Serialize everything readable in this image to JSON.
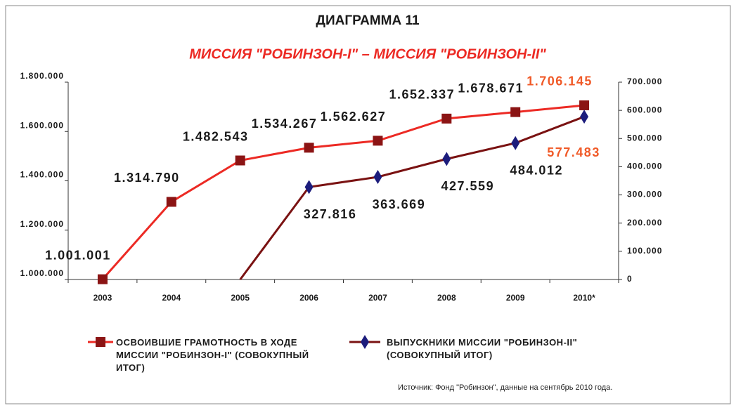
{
  "chart_data": {
    "type": "line",
    "title": "ДИАГРАММА 11",
    "subtitle": "МИССИЯ \"РОБИНЗОН-I\" – МИССИЯ \"РОБИНЗОН-II\"",
    "categories": [
      "2003",
      "2004",
      "2005",
      "2006",
      "2007",
      "2008",
      "2009",
      "2010*"
    ],
    "series": [
      {
        "name": "ОСВОИВШИЕ ГРАМОТНОСТЬ В ХОДЕ МИССИИ \"РОБИНЗОН-I\" (СОВОКУПНЫЙ ИТОГ)",
        "color": "#ec2a24",
        "marker_color": "#8b1414",
        "marker": "square",
        "values": [
          1001001,
          1314790,
          1482543,
          1534267,
          1562627,
          1652337,
          1678671,
          1706145
        ],
        "value_labels": [
          "1.001.001",
          "1.314.790",
          "1.482.543",
          "1.534.267",
          "1.562.627",
          "1.652.337",
          "1.678.671",
          "1.706.145"
        ]
      },
      {
        "name": "ВЫПУСКНИКИ МИССИИ \"РОБИНЗОН-II\" (СОВОКУПНЫЙ ИТОГ)",
        "color": "#7a1212",
        "marker_color": "#1c1c7c",
        "marker": "diamond",
        "axis": "y2",
        "values": [
          null,
          null,
          0,
          327816,
          363669,
          427559,
          484012,
          577483
        ],
        "value_labels": [
          null,
          null,
          null,
          "327.816",
          "363.669",
          "427.559",
          "484.012",
          "577.483"
        ]
      }
    ],
    "highlight_color": "#f05a28",
    "ylim": [
      1000000,
      1800000
    ],
    "yticks": [
      {
        "value": 1000000,
        "label": "1.000.000"
      },
      {
        "value": 1200000,
        "label": "1.200.000"
      },
      {
        "value": 1400000,
        "label": "1.400.000"
      },
      {
        "value": 1600000,
        "label": "1.600.000"
      },
      {
        "value": 1800000,
        "label": "1.800.000"
      }
    ],
    "y2lim": [
      0,
      700000
    ],
    "y2ticks": [
      0,
      {
        "value": 100000,
        "label": "100.000"
      },
      {
        "value": 200000,
        "label": "200.000"
      },
      {
        "value": 300000,
        "label": "300.000"
      },
      {
        "value": 400000,
        "label": "400.000"
      },
      {
        "value": 500000,
        "label": "500.000"
      },
      {
        "value": 600000,
        "label": "600.000"
      },
      {
        "value": 700000,
        "label": "700.000"
      }
    ],
    "source": "Источник: Фонд \"Робинзон\", данные на сентябрь 2010 года."
  }
}
